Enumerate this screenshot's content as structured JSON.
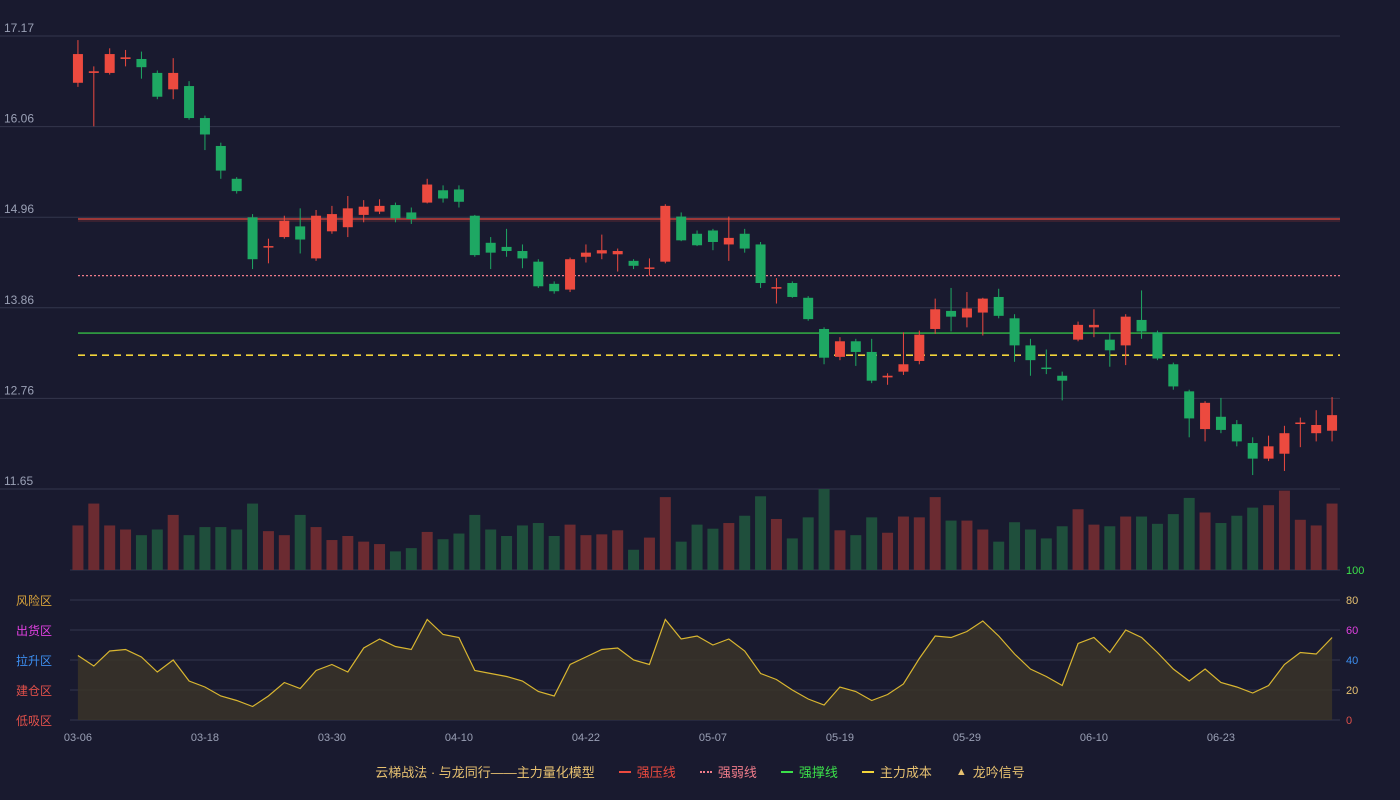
{
  "chart_data": {
    "type": "candlestick",
    "x_ticks": [
      "03-06",
      "03-18",
      "03-30",
      "04-10",
      "04-22",
      "05-07",
      "05-19",
      "05-29",
      "06-10",
      "06-23"
    ],
    "x_tick_index": [
      0,
      8,
      16,
      24,
      32,
      40,
      48,
      56,
      64,
      72
    ],
    "price_axis": {
      "ticks": [
        "17.17",
        "16.06",
        "14.96",
        "13.86",
        "12.76",
        "11.65"
      ],
      "range": [
        11.65,
        17.17
      ]
    },
    "indicator_axis": {
      "ticks": [
        "100",
        "80",
        "60",
        "40",
        "20",
        "0"
      ],
      "range": [
        0,
        100
      ]
    },
    "zones": [
      "风险区",
      "出货区",
      "拉升区",
      "建仓区",
      "低吸区"
    ],
    "zone_colors": [
      "#d9a33b",
      "#e040e0",
      "#3c8ef0",
      "#e0504a",
      "#e0504a"
    ],
    "lines": {
      "resistance": 14.94,
      "weak": 14.25,
      "support": 13.55,
      "cost": 13.28
    },
    "colors": {
      "up": "#ec4a3f",
      "down": "#1ea863",
      "vol_up": "#6b2b31",
      "vol_down": "#1f4f3c",
      "resistance": "#ec4a3f",
      "weak": "#f07c8a",
      "support": "#3be04a",
      "cost": "#f2d43a",
      "indicator": "#d9b630",
      "grid": "#33364d"
    },
    "candles": [
      [
        16.6,
        16.95,
        16.55,
        17.12
      ],
      [
        16.72,
        16.74,
        16.07,
        16.8
      ],
      [
        16.72,
        16.95,
        16.7,
        17.02
      ],
      [
        16.89,
        16.91,
        16.8,
        17.0
      ],
      [
        16.89,
        16.79,
        16.65,
        16.98
      ],
      [
        16.72,
        16.43,
        16.4,
        16.75
      ],
      [
        16.52,
        16.72,
        16.4,
        16.9
      ],
      [
        16.56,
        16.17,
        16.15,
        16.62
      ],
      [
        16.17,
        15.97,
        15.78,
        16.2
      ],
      [
        15.83,
        15.53,
        15.43,
        15.87
      ],
      [
        15.43,
        15.28,
        15.25,
        15.45
      ],
      [
        14.96,
        14.45,
        14.33,
        15.0
      ],
      [
        14.6,
        14.61,
        14.4,
        14.7
      ],
      [
        14.72,
        14.92,
        14.7,
        14.98
      ],
      [
        14.85,
        14.69,
        14.52,
        15.07
      ],
      [
        14.46,
        14.98,
        14.43,
        15.05
      ],
      [
        14.79,
        15.0,
        14.76,
        15.1
      ],
      [
        14.84,
        15.07,
        14.72,
        15.22
      ],
      [
        14.99,
        15.09,
        14.9,
        15.17
      ],
      [
        15.03,
        15.1,
        15.0,
        15.18
      ],
      [
        15.11,
        14.95,
        14.9,
        15.14
      ],
      [
        15.02,
        14.94,
        14.88,
        15.08
      ],
      [
        15.14,
        15.36,
        15.13,
        15.43
      ],
      [
        15.29,
        15.19,
        15.14,
        15.35
      ],
      [
        15.3,
        15.15,
        15.08,
        15.35
      ],
      [
        14.98,
        14.5,
        14.48,
        14.99
      ],
      [
        14.65,
        14.53,
        14.33,
        14.72
      ],
      [
        14.6,
        14.55,
        14.48,
        14.82
      ],
      [
        14.55,
        14.46,
        14.34,
        14.63
      ],
      [
        14.42,
        14.12,
        14.1,
        14.45
      ],
      [
        14.15,
        14.06,
        14.03,
        14.18
      ],
      [
        14.08,
        14.45,
        14.05,
        14.47
      ],
      [
        14.48,
        14.53,
        14.41,
        14.63
      ],
      [
        14.52,
        14.56,
        14.45,
        14.75
      ],
      [
        14.51,
        14.55,
        14.3,
        14.58
      ],
      [
        14.43,
        14.37,
        14.33,
        14.45
      ],
      [
        14.34,
        14.35,
        14.25,
        14.46
      ],
      [
        14.42,
        15.1,
        14.4,
        15.12
      ],
      [
        14.97,
        14.68,
        14.67,
        15.02
      ],
      [
        14.76,
        14.62,
        14.61,
        14.8
      ],
      [
        14.8,
        14.66,
        14.56,
        14.82
      ],
      [
        14.63,
        14.71,
        14.43,
        14.97
      ],
      [
        14.76,
        14.58,
        14.53,
        14.82
      ],
      [
        14.63,
        14.16,
        14.1,
        14.66
      ],
      [
        14.1,
        14.11,
        13.91,
        14.22
      ],
      [
        14.16,
        13.99,
        13.98,
        14.18
      ],
      [
        13.98,
        13.72,
        13.7,
        14.0
      ],
      [
        13.6,
        13.25,
        13.17,
        13.62
      ],
      [
        13.26,
        13.45,
        13.22,
        13.5
      ],
      [
        13.45,
        13.32,
        13.15,
        13.48
      ],
      [
        13.32,
        12.97,
        12.94,
        13.48
      ],
      [
        13.01,
        13.03,
        12.92,
        13.06
      ],
      [
        13.08,
        13.17,
        13.04,
        13.56
      ],
      [
        13.21,
        13.53,
        13.17,
        13.58
      ],
      [
        13.6,
        13.84,
        13.54,
        13.97
      ],
      [
        13.82,
        13.75,
        13.57,
        14.1
      ],
      [
        13.74,
        13.85,
        13.62,
        14.05
      ],
      [
        13.8,
        13.97,
        13.52,
        13.98
      ],
      [
        13.99,
        13.76,
        13.73,
        14.09
      ],
      [
        13.73,
        13.4,
        13.2,
        13.78
      ],
      [
        13.4,
        13.22,
        13.03,
        13.48
      ],
      [
        13.13,
        13.12,
        13.05,
        13.35
      ],
      [
        13.03,
        12.97,
        12.73,
        13.08
      ],
      [
        13.47,
        13.65,
        13.45,
        13.69
      ],
      [
        13.62,
        13.65,
        13.5,
        13.84
      ],
      [
        13.47,
        13.34,
        13.14,
        13.55
      ],
      [
        13.4,
        13.75,
        13.16,
        13.78
      ],
      [
        13.71,
        13.57,
        13.48,
        14.07
      ],
      [
        13.56,
        13.24,
        13.22,
        13.58
      ],
      [
        13.17,
        12.9,
        12.86,
        13.19
      ],
      [
        12.84,
        12.51,
        12.28,
        12.86
      ],
      [
        12.38,
        12.7,
        12.23,
        12.72
      ],
      [
        12.53,
        12.37,
        12.33,
        12.76
      ],
      [
        12.44,
        12.23,
        12.17,
        12.49
      ],
      [
        12.21,
        12.02,
        11.82,
        12.28
      ],
      [
        12.02,
        12.17,
        11.99,
        12.3
      ],
      [
        12.08,
        12.33,
        11.87,
        12.42
      ],
      [
        12.45,
        12.46,
        12.16,
        12.52
      ],
      [
        12.33,
        12.43,
        12.23,
        12.61
      ],
      [
        12.36,
        12.55,
        12.23,
        12.77
      ]
    ],
    "volume": [
      0.55,
      0.82,
      0.55,
      0.5,
      0.43,
      0.5,
      0.68,
      0.43,
      0.53,
      0.53,
      0.5,
      0.82,
      0.48,
      0.43,
      0.68,
      0.53,
      0.37,
      0.42,
      0.35,
      0.32,
      0.23,
      0.27,
      0.47,
      0.38,
      0.45,
      0.68,
      0.5,
      0.42,
      0.55,
      0.58,
      0.42,
      0.56,
      0.43,
      0.44,
      0.49,
      0.25,
      0.4,
      0.9,
      0.35,
      0.56,
      0.51,
      0.58,
      0.67,
      0.91,
      0.63,
      0.39,
      0.65,
      1.0,
      0.49,
      0.43,
      0.65,
      0.46,
      0.66,
      0.65,
      0.9,
      0.61,
      0.61,
      0.5,
      0.35,
      0.59,
      0.5,
      0.39,
      0.54,
      0.75,
      0.56,
      0.54,
      0.66,
      0.66,
      0.57,
      0.69,
      0.89,
      0.71,
      0.58,
      0.67,
      0.77,
      0.8,
      0.98,
      0.62,
      0.55,
      0.82
    ],
    "indicator": [
      43,
      36,
      46,
      47,
      42,
      32,
      40,
      26,
      22,
      16,
      13,
      9,
      16,
      25,
      21,
      33,
      37,
      32,
      48,
      54,
      49,
      47,
      67,
      57,
      55,
      33,
      31,
      29,
      26,
      19,
      16,
      37,
      42,
      47,
      48,
      40,
      37,
      67,
      54,
      56,
      50,
      54,
      46,
      31,
      27,
      20,
      14,
      10,
      22,
      19,
      13,
      17,
      24,
      41,
      56,
      55,
      59,
      66,
      56,
      44,
      34,
      29,
      23,
      51,
      55,
      45,
      60,
      55,
      45,
      34,
      26,
      34,
      25,
      22,
      18,
      23,
      37,
      45,
      44,
      55
    ]
  },
  "legend": {
    "title": "云梯战法 · 与龙同行——主力量化模型",
    "items": [
      {
        "label": "强压线",
        "style": "solid",
        "color": "#ec4a3f",
        "text_color": "#ec4a3f"
      },
      {
        "label": "强弱线",
        "style": "dotted",
        "color": "#f07c8a",
        "text_color": "#f07c8a"
      },
      {
        "label": "强撑线",
        "style": "solid",
        "color": "#3be04a",
        "text_color": "#3be04a"
      },
      {
        "label": "主力成本",
        "style": "dashed",
        "color": "#f2d43a",
        "text_color": "#e6c070"
      },
      {
        "label": "龙吟信号",
        "style": "triangle",
        "color": "#e6c070",
        "text_color": "#e6c070"
      }
    ]
  }
}
